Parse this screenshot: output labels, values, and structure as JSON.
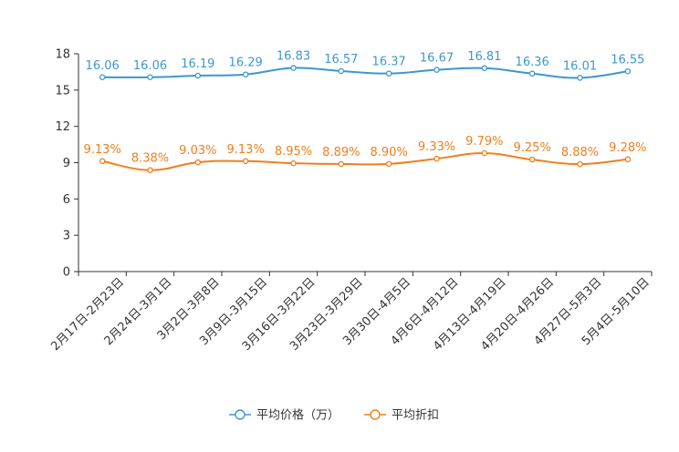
{
  "chart_data": {
    "type": "line",
    "title": "",
    "xlabel": "",
    "ylabel": "",
    "ylim": [
      0,
      18
    ],
    "yticks": [
      0,
      3,
      6,
      9,
      12,
      15,
      18
    ],
    "categories": [
      "2月17日-2月23日",
      "2月24日-3月1日",
      "3月2日-3月8日",
      "3月9日-3月15日",
      "3月16日-3月22日",
      "3月23日-3月29日",
      "3月30日-4月5日",
      "4月6日-4月12日",
      "4月13日-4月19日",
      "4月20日-4月26日",
      "4月27日-5月3日",
      "5月4日-5月10日"
    ],
    "series": [
      {
        "name": "平均价格（万）",
        "color": "#3d97cf",
        "values": [
          16.06,
          16.06,
          16.19,
          16.29,
          16.83,
          16.57,
          16.37,
          16.67,
          16.81,
          16.36,
          16.01,
          16.55
        ],
        "labels": [
          "16.06",
          "16.06",
          "16.19",
          "16.29",
          "16.83",
          "16.57",
          "16.37",
          "16.67",
          "16.81",
          "16.36",
          "16.01",
          "16.55"
        ]
      },
      {
        "name": "平均折扣",
        "color": "#f07f1d",
        "values": [
          9.13,
          8.38,
          9.03,
          9.13,
          8.95,
          8.89,
          8.9,
          9.33,
          9.79,
          9.25,
          8.88,
          9.28
        ],
        "labels": [
          "9.13%",
          "8.38%",
          "9.03%",
          "9.13%",
          "8.95%",
          "8.89%",
          "8.90%",
          "9.33%",
          "9.79%",
          "9.25%",
          "8.88%",
          "9.28%"
        ]
      }
    ],
    "grid": false,
    "legend_position": "bottom-center"
  }
}
